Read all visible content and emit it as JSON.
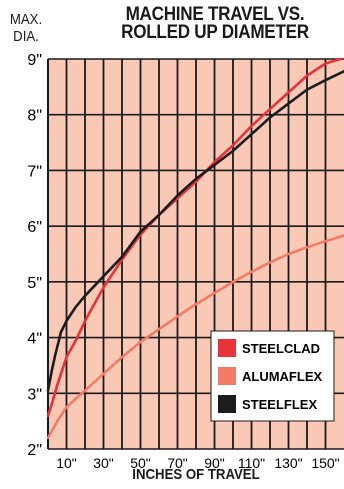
{
  "chart_data": {
    "type": "line",
    "title": [
      "MACHINE TRAVEL VS.",
      "ROLLED UP DIAMETER"
    ],
    "ylabel": [
      "MAX.",
      "DIA."
    ],
    "xlabel": "INCHES OF TRAVEL",
    "xlim": [
      0,
      160
    ],
    "ylim": [
      2,
      9
    ],
    "x_ticks": [
      10,
      30,
      50,
      70,
      90,
      110,
      130,
      150
    ],
    "x_tick_labels": [
      "10\"",
      "30\"",
      "50\"",
      "70\"",
      "90\"",
      "110\"",
      "130\"",
      "150\""
    ],
    "y_ticks": [
      2,
      3,
      4,
      5,
      6,
      7,
      8,
      9
    ],
    "y_tick_labels": [
      "2\"",
      "3\"",
      "4\"",
      "5\"",
      "6\"",
      "7\"",
      "8\"",
      "9\""
    ],
    "grid": "vertical every 10",
    "background": "#f9c9b5",
    "legend_placement": "bottom-right",
    "series": [
      {
        "name": "STEELCLAD",
        "color": "#e8323a",
        "points": [
          [
            0,
            2.6
          ],
          [
            2,
            2.8
          ],
          [
            5,
            3.15
          ],
          [
            10,
            3.65
          ],
          [
            15,
            3.95
          ],
          [
            20,
            4.3
          ],
          [
            30,
            4.9
          ],
          [
            40,
            5.4
          ],
          [
            50,
            5.85
          ],
          [
            60,
            6.2
          ],
          [
            70,
            6.5
          ],
          [
            80,
            6.8
          ],
          [
            90,
            7.15
          ],
          [
            100,
            7.45
          ],
          [
            110,
            7.8
          ],
          [
            120,
            8.1
          ],
          [
            130,
            8.4
          ],
          [
            140,
            8.7
          ],
          [
            150,
            8.92
          ],
          [
            158,
            9.0
          ]
        ]
      },
      {
        "name": "ALUMAFLEX",
        "color": "#f47c66",
        "points": [
          [
            0,
            2.2
          ],
          [
            5,
            2.5
          ],
          [
            10,
            2.75
          ],
          [
            20,
            3.05
          ],
          [
            30,
            3.35
          ],
          [
            40,
            3.65
          ],
          [
            50,
            3.92
          ],
          [
            60,
            4.15
          ],
          [
            70,
            4.38
          ],
          [
            80,
            4.6
          ],
          [
            90,
            4.8
          ],
          [
            100,
            5.0
          ],
          [
            110,
            5.18
          ],
          [
            120,
            5.35
          ],
          [
            130,
            5.5
          ],
          [
            140,
            5.62
          ],
          [
            150,
            5.73
          ],
          [
            160,
            5.83
          ]
        ]
      },
      {
        "name": "STEELFLEX",
        "color": "#1c1c1c",
        "points": [
          [
            0,
            3.05
          ],
          [
            2,
            3.4
          ],
          [
            4,
            3.7
          ],
          [
            7,
            4.1
          ],
          [
            10,
            4.3
          ],
          [
            15,
            4.55
          ],
          [
            20,
            4.75
          ],
          [
            30,
            5.1
          ],
          [
            40,
            5.45
          ],
          [
            50,
            5.9
          ],
          [
            60,
            6.2
          ],
          [
            70,
            6.55
          ],
          [
            80,
            6.85
          ],
          [
            90,
            7.1
          ],
          [
            100,
            7.35
          ],
          [
            110,
            7.65
          ],
          [
            120,
            7.95
          ],
          [
            130,
            8.2
          ],
          [
            140,
            8.45
          ],
          [
            150,
            8.62
          ],
          [
            160,
            8.78
          ]
        ]
      }
    ]
  }
}
